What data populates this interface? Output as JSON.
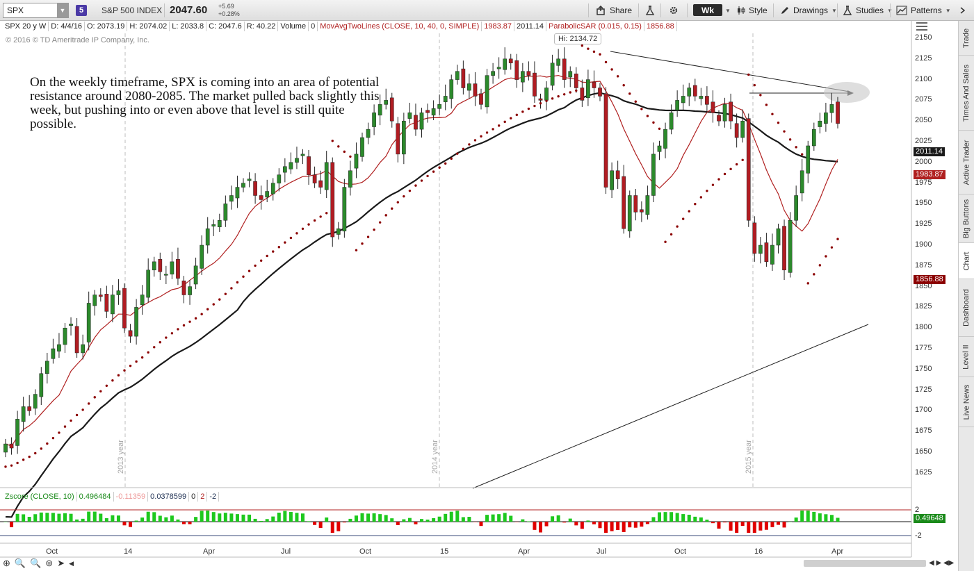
{
  "toolbar": {
    "symbol": "SPX",
    "link_badge": "5",
    "description": "S&P 500 INDEX",
    "price": "2047.60",
    "change": "+5.69",
    "change_pct": "+0.28%",
    "share": "Share",
    "timeframe": "Wk",
    "style": "Style",
    "drawings": "Drawings",
    "studies": "Studies",
    "patterns": "Patterns"
  },
  "infobar": {
    "period": "SPX 20 y W",
    "date": "D: 4/4/16",
    "open": "O: 2073.19",
    "high": "H: 2074.02",
    "low": "L: 2033.8",
    "close": "C: 2047.6",
    "range": "R: 40.22",
    "volume_label": "Volume",
    "volume": "0",
    "ma_study": "MovAvgTwoLines (CLOSE, 10, 40, 0, SIMPLE)",
    "ma1": "1983.87",
    "ma2": "2011.14",
    "sar_study": "ParabolicSAR (0.015, 0.15)",
    "sar": "1856.88"
  },
  "copyright": "© 2016 © TD Ameritrade IP Company, Inc.",
  "annotation": "On the weekly timeframe, SPX is coming into an area of potential resistance around 2080-2085.  The market pulled back slightly this week, but pushing into or even above that level is still quite possible.",
  "hi_label": "Hi: 2134.72",
  "price_tags": {
    "ma2": "2011.14",
    "ma1": "1983.87",
    "sar": "1856.88"
  },
  "zscore": {
    "study": "Zscore (CLOSE, 10)",
    "v1": "0.496484",
    "v2": "-0.11359",
    "v3": "0.0378599",
    "v4": "0",
    "v5": "2",
    "v6": "-2",
    "tag": "0.49648",
    "top_tick": "2",
    "bottom_tick": "-2"
  },
  "year_labels": [
    "2013 year",
    "2014 year",
    "2015 year"
  ],
  "right_tabs": [
    "Trade",
    "Times And Sales",
    "Active Trader",
    "Big Buttons",
    "Chart",
    "Dashboard",
    "Level II",
    "Live News"
  ],
  "colors": {
    "up": "#2c8a2c",
    "down": "#b01c22",
    "ma_fast": "#b02020",
    "ma_slow": "#1a1a1a",
    "sar": "#8b0000"
  },
  "chart_data": {
    "type": "candlestick",
    "y_ticks": [
      2150,
      2125,
      2100,
      2075,
      2050,
      2025,
      2000,
      1975,
      1950,
      1925,
      1900,
      1875,
      1850,
      1825,
      1800,
      1775,
      1750,
      1725,
      1700,
      1675,
      1650,
      1625
    ],
    "x_ticks": [
      "Oct",
      "14",
      "Apr",
      "Jul",
      "Oct",
      "15",
      "Apr",
      "Jul",
      "Oct",
      "16",
      "Apr"
    ],
    "ylim": [
      1610,
      2160
    ],
    "close_series": [
      1660,
      1655,
      1690,
      1705,
      1700,
      1720,
      1745,
      1760,
      1775,
      1780,
      1800,
      1805,
      1770,
      1780,
      1830,
      1840,
      1838,
      1820,
      1840,
      1845,
      1800,
      1790,
      1825,
      1840,
      1870,
      1880,
      1868,
      1865,
      1880,
      1860,
      1840,
      1850,
      1875,
      1900,
      1920,
      1925,
      1930,
      1950,
      1960,
      1970,
      1975,
      1980,
      1960,
      1955,
      1965,
      1975,
      1985,
      1995,
      2000,
      2005,
      2010,
      1985,
      1975,
      1970,
      2000,
      1910,
      1920,
      1970,
      1990,
      2010,
      2030,
      2040,
      2060,
      2070,
      2075,
      2050,
      2010,
      2050,
      2060,
      2040,
      2060,
      2060,
      2065,
      2070,
      2080,
      2100,
      2110,
      2090,
      2095,
      2080,
      2070,
      2105,
      2110,
      2115,
      2125,
      2120,
      2100,
      2110,
      2105,
      2080,
      2075,
      2090,
      2120,
      2125,
      2100,
      2110,
      2090,
      2075,
      2100,
      2090,
      2080,
      1970,
      1990,
      1980,
      1920,
      1960,
      1940,
      1940,
      1960,
      2010,
      2020,
      2040,
      2060,
      2075,
      2080,
      2090,
      2080,
      2080,
      2070,
      2060,
      2050,
      2070,
      2050,
      2030,
      2050,
      1930,
      1890,
      1900,
      1880,
      1900,
      1920,
      1870,
      1930,
      1960,
      1990,
      2020,
      2040,
      2050,
      2060,
      2070,
      2047
    ]
  }
}
